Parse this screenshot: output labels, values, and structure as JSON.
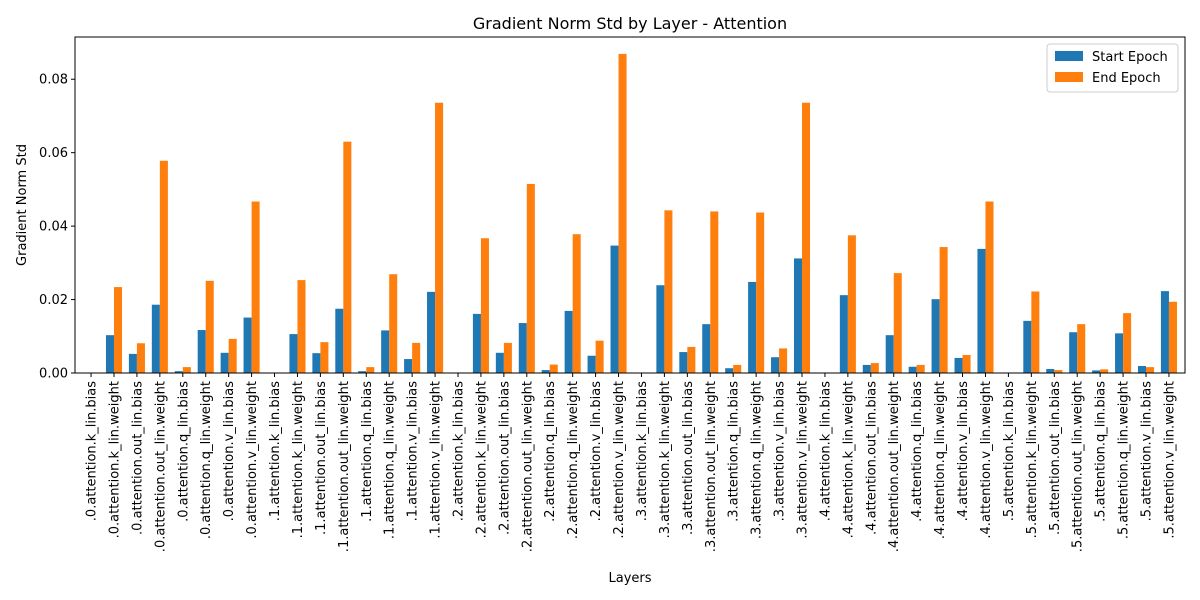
{
  "chart_data": {
    "type": "bar",
    "title": "Gradient Norm Std by Layer - Attention",
    "xlabel": "Layers",
    "ylabel": "Gradient Norm Std",
    "ylim": [
      0,
      0.0915
    ],
    "yticks": [
      0.0,
      0.02,
      0.04,
      0.06,
      0.08
    ],
    "ytick_labels": [
      "0.00",
      "0.02",
      "0.04",
      "0.06",
      "0.08"
    ],
    "grid": false,
    "legend_position": "top-right",
    "categories": [
      ".0.attention.k_lin.bias",
      ".0.attention.k_lin.weight",
      ".0.attention.out_lin.bias",
      ".0.attention.out_lin.weight",
      ".0.attention.q_lin.bias",
      ".0.attention.q_lin.weight",
      ".0.attention.v_lin.bias",
      ".0.attention.v_lin.weight",
      ".1.attention.k_lin.bias",
      ".1.attention.k_lin.weight",
      ".1.attention.out_lin.bias",
      ".1.attention.out_lin.weight",
      ".1.attention.q_lin.bias",
      ".1.attention.q_lin.weight",
      ".1.attention.v_lin.bias",
      ".1.attention.v_lin.weight",
      ".2.attention.k_lin.bias",
      ".2.attention.k_lin.weight",
      ".2.attention.out_lin.bias",
      ".2.attention.out_lin.weight",
      ".2.attention.q_lin.bias",
      ".2.attention.q_lin.weight",
      ".2.attention.v_lin.bias",
      ".2.attention.v_lin.weight",
      ".3.attention.k_lin.bias",
      ".3.attention.k_lin.weight",
      ".3.attention.out_lin.bias",
      ".3.attention.out_lin.weight",
      ".3.attention.q_lin.bias",
      ".3.attention.q_lin.weight",
      ".3.attention.v_lin.bias",
      ".3.attention.v_lin.weight",
      ".4.attention.k_lin.bias",
      ".4.attention.k_lin.weight",
      ".4.attention.out_lin.bias",
      ".4.attention.out_lin.weight",
      ".4.attention.q_lin.bias",
      ".4.attention.q_lin.weight",
      ".4.attention.v_lin.bias",
      ".4.attention.v_lin.weight",
      ".5.attention.k_lin.bias",
      ".5.attention.k_lin.weight",
      ".5.attention.out_lin.bias",
      ".5.attention.out_lin.weight",
      ".5.attention.q_lin.bias",
      ".5.attention.q_lin.weight",
      ".5.attention.v_lin.bias",
      ".5.attention.v_lin.weight"
    ],
    "series": [
      {
        "name": "Start Epoch",
        "color": "#1f77b4",
        "values": [
          0.0,
          0.0103,
          0.0052,
          0.0186,
          0.0005,
          0.0117,
          0.0055,
          0.0151,
          0.0,
          0.0106,
          0.0054,
          0.0175,
          0.0005,
          0.0116,
          0.0038,
          0.0221,
          0.0,
          0.0161,
          0.0055,
          0.0136,
          0.0008,
          0.0169,
          0.0047,
          0.0347,
          0.0,
          0.0239,
          0.0057,
          0.0133,
          0.0013,
          0.0248,
          0.0043,
          0.0312,
          0.0,
          0.0212,
          0.0022,
          0.0103,
          0.0017,
          0.0201,
          0.0041,
          0.0338,
          0.0,
          0.0142,
          0.0011,
          0.0111,
          0.0007,
          0.0108,
          0.0019,
          0.0223
        ]
      },
      {
        "name": "End Epoch",
        "color": "#ff7f0e",
        "values": [
          0.0,
          0.0234,
          0.0081,
          0.0578,
          0.0016,
          0.0251,
          0.0093,
          0.0467,
          0.0,
          0.0253,
          0.0084,
          0.063,
          0.0016,
          0.0269,
          0.0082,
          0.0736,
          0.0,
          0.0367,
          0.0082,
          0.0515,
          0.0023,
          0.0378,
          0.0088,
          0.0869,
          0.0,
          0.0443,
          0.0071,
          0.044,
          0.0022,
          0.0437,
          0.0067,
          0.0736,
          0.0,
          0.0375,
          0.0027,
          0.0272,
          0.0022,
          0.0343,
          0.0049,
          0.0467,
          0.0,
          0.0222,
          0.0008,
          0.0133,
          0.001,
          0.0163,
          0.0016,
          0.0194
        ]
      }
    ]
  }
}
